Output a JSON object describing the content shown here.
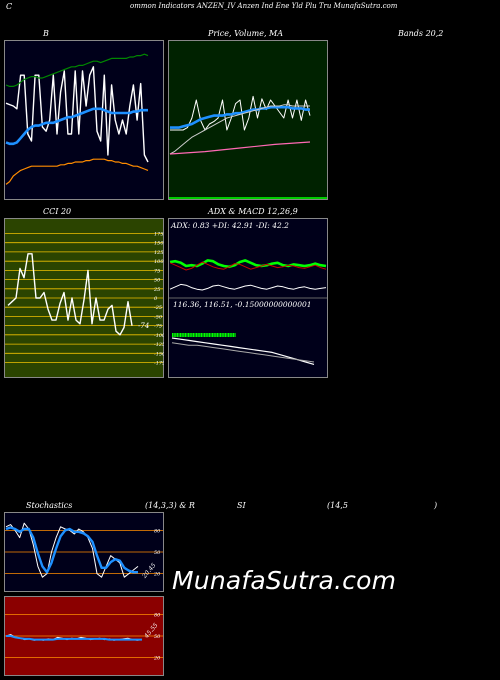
{
  "header": {
    "c": "C",
    "title": "ommon  Indicators ANZEN_IV Anzen  Ind Ene   Yld Plu   Tru   MunafaSutra.com"
  },
  "watermark": "MunafaSutra.com",
  "colors": {
    "bg": "#000000",
    "navy": "#00001a",
    "darkgreen": "#002200",
    "olive": "#2b4400",
    "darkred": "#8b0000"
  },
  "chart_data": [
    {
      "id": "bollinger",
      "type": "line",
      "title_left": "B",
      "title_right": "Bands 20,2",
      "ylim": [
        0,
        100
      ],
      "series": [
        {
          "color": "#ffffff",
          "values": [
            62,
            61,
            60,
            58,
            82,
            82,
            40,
            35,
            82,
            82,
            45,
            42,
            50,
            82,
            40,
            70,
            85,
            40,
            40,
            85,
            40,
            85,
            60,
            82,
            88,
            42,
            35,
            82,
            25,
            75,
            50,
            40,
            50,
            40,
            60,
            75,
            50,
            76,
            25,
            20
          ]
        },
        {
          "color": "#1e90ff",
          "values": [
            34,
            33,
            33,
            34,
            37,
            40,
            43,
            45,
            46,
            46,
            47,
            48,
            48,
            48,
            49,
            50,
            51,
            52,
            52,
            53,
            54,
            55,
            56,
            57,
            58,
            58,
            58,
            57,
            56,
            55,
            55,
            55,
            55,
            55,
            55,
            56,
            56,
            57,
            57,
            57
          ]
        },
        {
          "color": "#008800",
          "values": [
            75,
            74,
            74,
            75,
            77,
            79,
            80,
            81,
            81,
            80,
            80,
            81,
            82,
            83,
            84,
            85,
            86,
            87,
            88,
            88,
            89,
            89,
            90,
            91,
            92,
            92,
            91,
            92,
            93,
            94,
            94,
            94,
            94,
            94,
            95,
            95,
            96,
            96,
            97,
            96
          ]
        },
        {
          "color": "#ff8c00",
          "values": [
            4,
            6,
            10,
            12,
            14,
            15,
            16,
            17,
            17,
            17,
            17,
            17,
            17,
            17,
            17,
            18,
            18,
            19,
            19,
            20,
            20,
            20,
            21,
            21,
            22,
            22,
            22,
            22,
            21,
            21,
            20,
            20,
            19,
            19,
            18,
            17,
            17,
            16,
            15,
            14
          ]
        }
      ]
    },
    {
      "id": "price-ma",
      "type": "line",
      "title": "Price,  Volume,  MA",
      "ylim": [
        0,
        100
      ],
      "series": [
        {
          "color": "#ffffff",
          "values": [
            50,
            50,
            50,
            50,
            52,
            60,
            75,
            58,
            50,
            55,
            57,
            60,
            75,
            50,
            60,
            72,
            75,
            50,
            60,
            78,
            60,
            76,
            67,
            75,
            70,
            65,
            60,
            75,
            60,
            75,
            58,
            75,
            62
          ]
        },
        {
          "color": "#1e90ff",
          "values": [
            52,
            52,
            52,
            53,
            54,
            55,
            57,
            59,
            60,
            61,
            62,
            62,
            62,
            63,
            63,
            64,
            64,
            65,
            66,
            67,
            67,
            68,
            68,
            69,
            69,
            69,
            69,
            69,
            68,
            68,
            68,
            67,
            67
          ]
        },
        {
          "color": "#cccccc",
          "values": [
            30,
            32,
            35,
            38,
            41,
            44,
            46,
            48,
            50,
            52,
            54,
            56,
            58,
            60,
            61,
            62,
            63,
            64,
            65,
            66,
            67,
            68,
            69,
            70,
            70,
            70,
            71,
            71,
            70,
            70,
            70,
            70,
            70
          ]
        },
        {
          "color": "#ff69b4",
          "values": [
            30,
            32,
            35,
            38,
            40
          ]
        }
      ]
    },
    {
      "id": "cci",
      "type": "line",
      "title": "CCI 20",
      "yticks": [
        175,
        150,
        125,
        100,
        75,
        50,
        25,
        0,
        -25,
        -50,
        -75,
        -100,
        -125,
        -150,
        -175
      ],
      "ylim": [
        -190,
        190
      ],
      "last_label": "-74",
      "series": [
        {
          "color": "#ffffff",
          "values": [
            -20,
            -10,
            0,
            80,
            55,
            120,
            120,
            0,
            0,
            15,
            -30,
            -60,
            -60,
            -15,
            15,
            -60,
            0,
            -60,
            -70,
            -5,
            75,
            -70,
            0,
            -60,
            -60,
            -30,
            -20,
            -90,
            -100,
            -80,
            -10,
            -75
          ]
        }
      ]
    },
    {
      "id": "adx-macd",
      "type": "line",
      "title": "ADX  & MACD 12,26,9",
      "adx_text": "ADX: 0.83  +DI: 42.91 -DI: 42.2",
      "macd_text": "116.36,   116.51,   -0.15000000000001",
      "series": [
        {
          "name": "ADX",
          "color": "#00ff00",
          "values": [
            80,
            82,
            78,
            70,
            72,
            70,
            76,
            84,
            82,
            74,
            70,
            68,
            72,
            80,
            84,
            78,
            72,
            70,
            72,
            76,
            78,
            72,
            70,
            74,
            72,
            70,
            72,
            76,
            72,
            70
          ]
        },
        {
          "name": "+DI",
          "color": "#cc0000",
          "values": [
            78,
            72,
            66,
            60,
            64,
            72,
            80,
            74,
            68,
            64,
            62,
            68,
            76,
            74,
            68,
            62,
            66,
            70,
            74,
            70,
            66,
            68,
            72,
            70,
            66,
            64,
            68,
            72,
            66,
            62
          ]
        },
        {
          "name": "-DI",
          "color": "#ffffff",
          "values": [
            12,
            18,
            24,
            22,
            16,
            12,
            10,
            14,
            20,
            22,
            18,
            14,
            12,
            16,
            20,
            22,
            18,
            14,
            12,
            16,
            20,
            18,
            14,
            12,
            16,
            18,
            14,
            12,
            14,
            16
          ]
        },
        {
          "name": "MACD",
          "color": "#ffffff",
          "values": [
            50,
            49,
            48,
            47,
            46,
            45,
            44,
            43,
            42,
            41,
            40,
            39,
            38,
            36,
            34,
            32,
            30,
            28
          ]
        },
        {
          "name": "Signal",
          "color": "#aaaaaa",
          "values": [
            46,
            45,
            44,
            44,
            43,
            42,
            41,
            40,
            39,
            38,
            37,
            36,
            35,
            34,
            33,
            32,
            31,
            30
          ]
        }
      ]
    },
    {
      "id": "stochastics",
      "type": "line",
      "title_left": "Stochastics",
      "title_mid": "(14,3,3) & R",
      "yticks": [
        80,
        50,
        20
      ],
      "ylim": [
        0,
        100
      ],
      "last_label": "20.45",
      "series": [
        {
          "color": "#ffffff",
          "values": [
            85,
            88,
            80,
            70,
            90,
            82,
            60,
            30,
            15,
            20,
            50,
            70,
            85,
            82,
            80,
            75,
            82,
            78,
            70,
            55,
            20,
            15,
            30,
            45,
            40,
            35,
            15,
            20,
            25,
            30
          ]
        },
        {
          "color": "#1e90ff",
          "values": [
            82,
            84,
            82,
            78,
            82,
            82,
            70,
            48,
            30,
            22,
            35,
            55,
            72,
            80,
            82,
            78,
            78,
            76,
            72,
            64,
            45,
            28,
            28,
            36,
            40,
            38,
            28,
            24,
            22,
            22
          ]
        }
      ]
    },
    {
      "id": "rsi",
      "type": "line",
      "title_left": "SI",
      "title_mid": "(14,5",
      "title_right": ")",
      "yticks": [
        80,
        50,
        20
      ],
      "ylim": [
        0,
        100
      ],
      "last_label": "45.55",
      "series": [
        {
          "color": "#ffffff",
          "values": [
            50,
            52,
            48,
            47,
            45,
            46,
            44,
            45,
            44,
            46,
            45,
            48,
            47,
            45,
            47,
            46,
            48,
            47,
            45,
            46,
            47,
            45,
            46,
            44,
            45,
            46,
            47,
            45,
            44,
            45
          ]
        },
        {
          "color": "#1e90ff",
          "values": [
            50,
            50,
            48,
            47,
            46,
            46,
            45,
            45,
            45,
            45,
            45,
            46,
            46,
            46,
            46,
            46,
            46,
            46,
            46,
            46,
            46,
            46,
            45,
            45,
            45,
            45,
            45,
            45,
            45,
            45
          ]
        }
      ]
    }
  ]
}
